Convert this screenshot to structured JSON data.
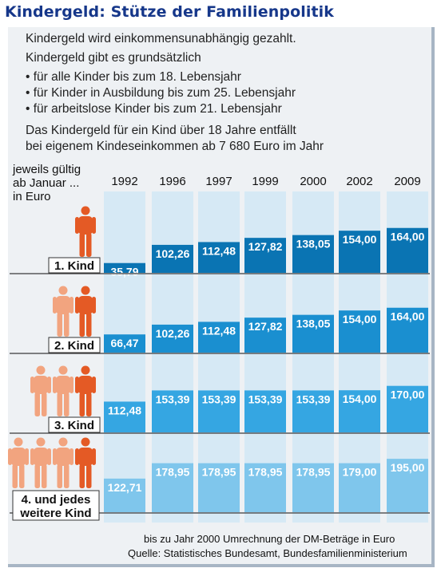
{
  "title": "Kindergeld: Stütze der Familienpolitik",
  "intro": {
    "line1": "Kindergeld wird einkommensunabhängig gezahlt.",
    "line2": "Kindergeld gibt es grundsätzlich",
    "bullets": [
      "• für alle Kinder bis zum 18. Lebensjahr",
      "• für Kinder in Ausbildung bis zum 25. Lebensjahr",
      "• für arbeitslose Kinder bis zum 21. Lebensjahr"
    ],
    "note1": "Das Kindergeld für ein Kind über 18 Jahre entfällt",
    "note2": "bei eigenem Kindeseinkommen ab 7 680 Euro im Jahr"
  },
  "header": {
    "line1": "jeweils gültig",
    "line2": "ab Januar ...",
    "line3": "in Euro"
  },
  "footer": {
    "line1": "bis zu Jahr 2000 Umrechnung der DM-Beträge in Euro",
    "line2": "Quelle: Statistisches Bundesamt, Bundesfamilienministerium"
  },
  "colors": {
    "title": "#16378a",
    "column_bg": "#d6e9f5",
    "row_colors": [
      "#0a74b3",
      "#1a8fd0",
      "#35a6e2",
      "#7fc6ec"
    ],
    "figure_dark": "#e45a25",
    "figure_light": "#f2a47f"
  },
  "chart_data": {
    "type": "bar",
    "categories": [
      "1992",
      "1996",
      "1997",
      "1999",
      "2000",
      "2002",
      "2009"
    ],
    "series": [
      {
        "name": "1. Kind",
        "values": [
          35.79,
          102.26,
          112.48,
          127.82,
          138.05,
          154.0,
          164.0
        ],
        "labels": [
          "35,79",
          "102,26",
          "112,48",
          "127,82",
          "138,05",
          "154,00",
          "164,00"
        ]
      },
      {
        "name": "2. Kind",
        "values": [
          66.47,
          102.26,
          112.48,
          127.82,
          138.05,
          154.0,
          164.0
        ],
        "labels": [
          "66,47",
          "102,26",
          "112,48",
          "127,82",
          "138,05",
          "154,00",
          "164,00"
        ]
      },
      {
        "name": "3. Kind",
        "values": [
          112.48,
          153.39,
          153.39,
          153.39,
          153.39,
          154.0,
          170.0
        ],
        "labels": [
          "112,48",
          "153,39",
          "153,39",
          "153,39",
          "153,39",
          "154,00",
          "170,00"
        ]
      },
      {
        "name": "4. und jedes weitere Kind",
        "name_lines": [
          "4. und jedes",
          "weitere Kind"
        ],
        "values": [
          122.71,
          178.95,
          178.95,
          178.95,
          178.95,
          179.0,
          195.0
        ],
        "labels": [
          "122,71",
          "178,95",
          "178,95",
          "178,95",
          "178,95",
          "179,00",
          "195,00"
        ]
      }
    ],
    "figures_per_row": [
      1,
      2,
      3,
      4
    ],
    "ylim": [
      0,
      200
    ],
    "grid": false,
    "legend": "none"
  }
}
